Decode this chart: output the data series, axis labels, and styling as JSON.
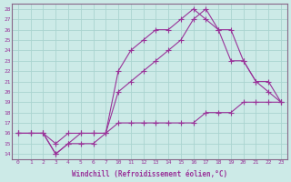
{
  "xlabel": "Windchill (Refroidissement éolien,°C)",
  "bg_color": "#cceae7",
  "grid_color": "#aad4d0",
  "line_color": "#993399",
  "line1_x": [
    0,
    1,
    2,
    3,
    4,
    5,
    6,
    7,
    10,
    11,
    12,
    13,
    14,
    15,
    16,
    17,
    18,
    19,
    20,
    21,
    22,
    23
  ],
  "line1_y": [
    16,
    16,
    16,
    15,
    16,
    16,
    16,
    16,
    22,
    24,
    25,
    26,
    26,
    27,
    28,
    27,
    26,
    26,
    23,
    21,
    20,
    19
  ],
  "line2_x": [
    0,
    1,
    2,
    3,
    4,
    5,
    6,
    7,
    10,
    11,
    12,
    13,
    14,
    15,
    16,
    17,
    18,
    19,
    20,
    21,
    22,
    23
  ],
  "line2_y": [
    16,
    16,
    16,
    14,
    15,
    16,
    16,
    16,
    20,
    21,
    22,
    23,
    24,
    25,
    27,
    28,
    26,
    23,
    23,
    21,
    21,
    19
  ],
  "line3_x": [
    0,
    1,
    2,
    3,
    4,
    5,
    6,
    7,
    10,
    11,
    12,
    13,
    14,
    15,
    16,
    17,
    18,
    19,
    20,
    21,
    22,
    23
  ],
  "line3_y": [
    16,
    16,
    16,
    14,
    15,
    15,
    15,
    16,
    17,
    17,
    17,
    17,
    17,
    17,
    17,
    18,
    18,
    18,
    19,
    19,
    19,
    19
  ],
  "xtick_labels": [
    "0",
    "1",
    "2",
    "3",
    "4",
    "5",
    "6",
    "7",
    "10",
    "11",
    "12",
    "13",
    "14",
    "15",
    "16",
    "17",
    "18",
    "19",
    "20",
    "21",
    "22",
    "23"
  ],
  "ytick_labels": [
    "14",
    "15",
    "16",
    "17",
    "18",
    "19",
    "20",
    "21",
    "22",
    "23",
    "24",
    "25",
    "26",
    "27",
    "28"
  ],
  "ytick_vals": [
    14,
    15,
    16,
    17,
    18,
    19,
    20,
    21,
    22,
    23,
    24,
    25,
    26,
    27,
    28
  ],
  "ylim": [
    13.5,
    28.5
  ],
  "xlim_idx": [
    -0.5,
    21.5
  ]
}
